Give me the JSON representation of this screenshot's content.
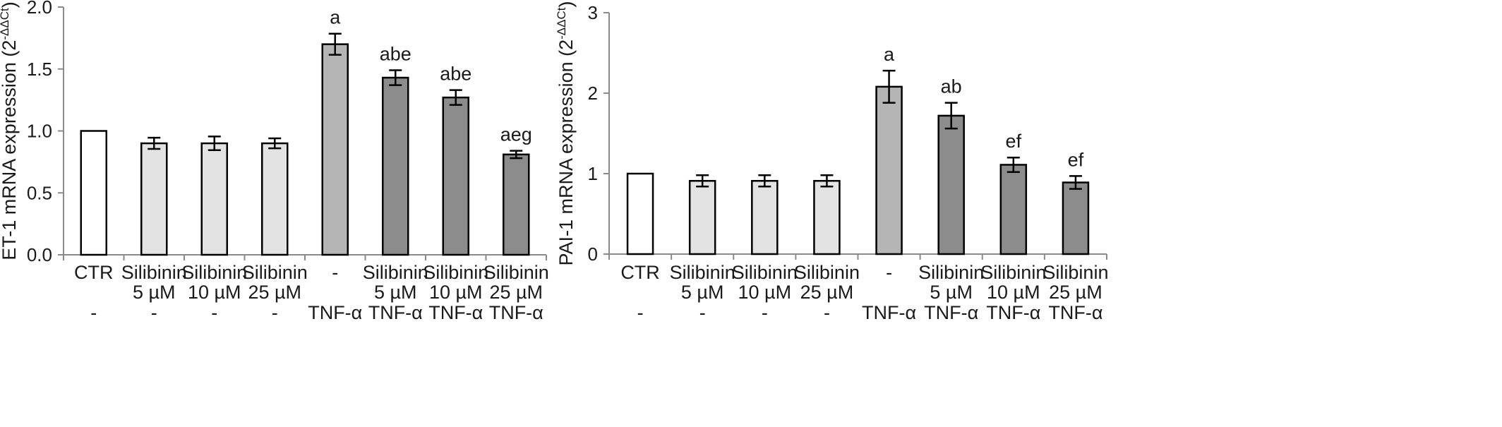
{
  "chart_data": [
    {
      "type": "bar",
      "title": "",
      "ylabel_main": "ET-1 mRNA expression (2",
      "ylabel_sup": "-ΔΔCt",
      "ylabel_close": ")",
      "ylim": [
        0,
        2.0
      ],
      "yticks": [
        "0.0",
        "0.5",
        "1.0",
        "1.5",
        "2.0"
      ],
      "ytick_values": [
        0,
        0.5,
        1.0,
        1.5,
        2.0
      ],
      "grid": false,
      "categories": [
        {
          "line1": "CTR",
          "line2": "",
          "line3": "-"
        },
        {
          "line1": "Silibinin",
          "line2": "5 µM",
          "line3": "-"
        },
        {
          "line1": "Silibinin",
          "line2": "10 µM",
          "line3": "-"
        },
        {
          "line1": "Silibinin",
          "line2": "25 µM",
          "line3": "-"
        },
        {
          "line1": "-",
          "line2": "",
          "line3": "TNF-α"
        },
        {
          "line1": "Silibinin",
          "line2": "5 µM",
          "line3": "TNF-α"
        },
        {
          "line1": "Silibinin",
          "line2": "10 µM",
          "line3": "TNF-α"
        },
        {
          "line1": "Silibinin",
          "line2": "25 µM",
          "line3": "TNF-α"
        }
      ],
      "values": [
        1.0,
        0.9,
        0.9,
        0.9,
        1.7,
        1.43,
        1.27,
        0.81
      ],
      "errors": [
        0,
        0.045,
        0.055,
        0.04,
        0.085,
        0.06,
        0.06,
        0.03
      ],
      "significance": [
        "",
        "",
        "",
        "",
        "a",
        "abe",
        "abe",
        "aeg"
      ],
      "bar_colors": [
        "#ffffff",
        "#e3e3e3",
        "#e3e3e3",
        "#e3e3e3",
        "#b5b5b5",
        "#8c8c8c",
        "#8c8c8c",
        "#8c8c8c"
      ]
    },
    {
      "type": "bar",
      "title": "",
      "ylabel_main": "PAI-1 mRNA expression (2",
      "ylabel_sup": "-ΔΔCt",
      "ylabel_close": ")",
      "ylim": [
        0,
        3
      ],
      "yticks": [
        "0",
        "1",
        "2",
        "3"
      ],
      "ytick_values": [
        0,
        1,
        2,
        3
      ],
      "grid": false,
      "categories": [
        {
          "line1": "CTR",
          "line2": "",
          "line3": "-"
        },
        {
          "line1": "Silibinin",
          "line2": "5 µM",
          "line3": "-"
        },
        {
          "line1": "Silibinin",
          "line2": "10 µM",
          "line3": "-"
        },
        {
          "line1": "Silibinin",
          "line2": "25 µM",
          "line3": "-"
        },
        {
          "line1": "-",
          "line2": "",
          "line3": "TNF-α"
        },
        {
          "line1": "Silibinin",
          "line2": "5 µM",
          "line3": "TNF-α"
        },
        {
          "line1": "Silibinin",
          "line2": "10 µM",
          "line3": "TNF-α"
        },
        {
          "line1": "Silibinin",
          "line2": "25 µM",
          "line3": "TNF-α"
        }
      ],
      "values": [
        1.0,
        0.91,
        0.91,
        0.91,
        2.08,
        1.72,
        1.11,
        0.89
      ],
      "errors": [
        0,
        0.07,
        0.07,
        0.07,
        0.2,
        0.16,
        0.09,
        0.08
      ],
      "significance": [
        "",
        "",
        "",
        "",
        "a",
        "ab",
        "ef",
        "ef"
      ],
      "bar_colors": [
        "#ffffff",
        "#e3e3e3",
        "#e3e3e3",
        "#e3e3e3",
        "#b5b5b5",
        "#8c8c8c",
        "#8c8c8c",
        "#8c8c8c"
      ]
    }
  ]
}
